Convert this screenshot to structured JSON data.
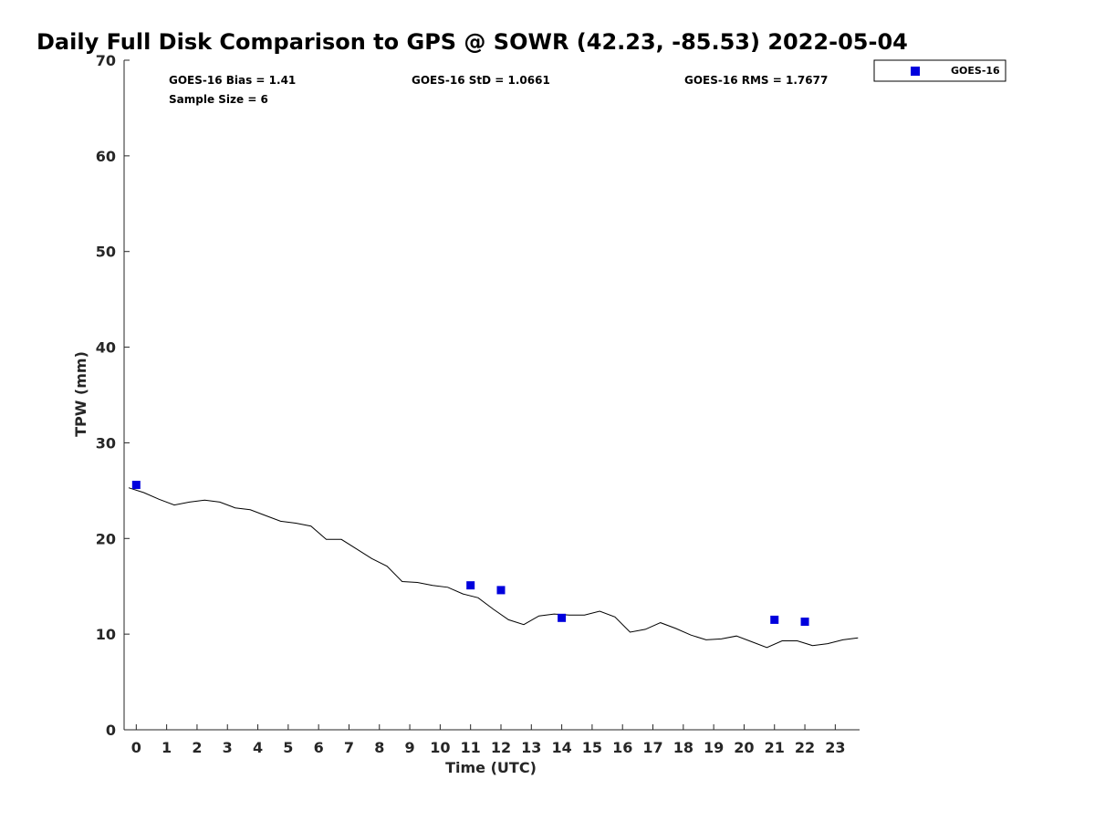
{
  "chart_data": {
    "type": "scatter",
    "title": "Daily Full Disk Comparison to GPS @ SOWR (42.23, -85.53) 2022-05-04",
    "xlabel": "Time (UTC)",
    "ylabel": "TPW (mm)",
    "xlim": [
      -0.4,
      23.8
    ],
    "ylim": [
      0,
      70
    ],
    "x_ticks": [
      "0",
      "1",
      "2",
      "3",
      "4",
      "5",
      "6",
      "7",
      "8",
      "9",
      "10",
      "11",
      "12",
      "13",
      "14",
      "15",
      "16",
      "17",
      "18",
      "19",
      "20",
      "21",
      "22",
      "23"
    ],
    "y_ticks": [
      "0",
      "10",
      "20",
      "30",
      "40",
      "50",
      "60",
      "70"
    ],
    "grid": false,
    "legend_position": "top-right, outside plot",
    "stats": {
      "bias": "GOES-16 Bias = 1.41",
      "std": "GOES-16 StD = 1.0661",
      "rms": "GOES-16 RMS = 1.7677",
      "sample": "Sample Size = 6"
    },
    "series": [
      {
        "name": "GOES-16",
        "kind": "scatter",
        "color": "#0000dd",
        "x": [
          0,
          11,
          12,
          14,
          21,
          22
        ],
        "y": [
          25.6,
          15.1,
          14.6,
          11.7,
          11.5,
          11.3
        ]
      },
      {
        "kind": "line",
        "color": "#000000",
        "x": [
          -0.25,
          0.25,
          0.75,
          1.25,
          1.75,
          2.25,
          2.75,
          3.25,
          3.75,
          4.25,
          4.75,
          5.25,
          5.75,
          6.25,
          6.75,
          7.25,
          7.75,
          8.25,
          8.75,
          9.25,
          9.75,
          10.25,
          10.75,
          11.25,
          11.75,
          12.25,
          12.75,
          13.25,
          13.75,
          14.25,
          14.75,
          15.25,
          15.75,
          16.25,
          16.75,
          17.25,
          17.75,
          18.25,
          18.75,
          19.25,
          19.75,
          20.25,
          20.75,
          21.25,
          21.75,
          22.25,
          22.75,
          23.25,
          23.75
        ],
        "y": [
          25.3,
          24.8,
          24.1,
          23.5,
          23.8,
          24.0,
          23.8,
          23.2,
          23.0,
          22.4,
          21.8,
          21.6,
          21.3,
          19.9,
          19.9,
          18.9,
          17.9,
          17.1,
          15.5,
          15.4,
          15.1,
          14.9,
          14.2,
          13.8,
          12.6,
          11.5,
          11.0,
          11.9,
          12.1,
          12.0,
          12.0,
          12.4,
          11.8,
          10.2,
          10.5,
          11.2,
          10.6,
          9.9,
          9.4,
          9.5,
          9.8,
          9.2,
          8.6,
          9.3,
          9.3,
          8.8,
          9.0,
          9.4,
          9.6
        ]
      }
    ]
  }
}
